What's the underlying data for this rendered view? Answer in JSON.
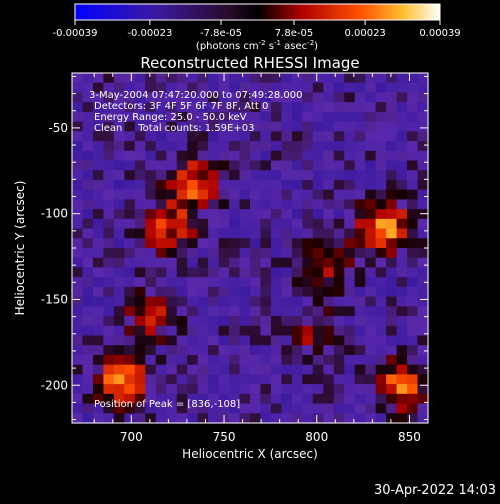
{
  "timestamp": "30-Apr-2022 14:03",
  "colorbar": {
    "tick_labels": [
      "-0.00039",
      "-0.00023",
      "-7.8e-05",
      "7.8e-05",
      "0.00023",
      "0.00039"
    ],
    "tick_values": [
      -0.00039,
      -0.00023,
      -7.8e-05,
      7.8e-05,
      0.00023,
      0.00039
    ],
    "range": [
      -0.00039,
      0.00039
    ],
    "units_main": "(photons cm",
    "units_exp1": "-2",
    "units_mid": " s",
    "units_exp2": "-1",
    "units_end": " asec",
    "units_exp3": "-2",
    "units_close": ")"
  },
  "chart_data": {
    "type": "heatmap",
    "title": "Reconstructed RHESSI Image",
    "xlabel": "Heliocentric X (arcsec)",
    "ylabel": "Heliocentric Y (arcsec)",
    "xlim": [
      668,
      860
    ],
    "ylim": [
      -222,
      -18
    ],
    "x_ticks": [
      700,
      750,
      800,
      850
    ],
    "y_ticks": [
      -50,
      -100,
      -150,
      -200
    ],
    "info_lines": [
      "3-May-2004 07:47:20.000 to 07:49:28.000",
      "Detectors: 3F 4F 5F 6F 7F 8F, Att 0",
      "Energy Range: 25.0 - 50.0 keV",
      "Clean     Total counts: 1.59E+03"
    ],
    "peak_label": "Position of Peak = [836,-108]",
    "peak": [
      836,
      -108
    ],
    "grid": {
      "nx": 34,
      "ny": 36
    },
    "colormap": "blue-purple-red-yellow-white",
    "bright_sources": [
      {
        "x": 836,
        "y": -108,
        "value": 0.00039
      },
      {
        "x": 733,
        "y": -83,
        "value": 0.00033
      },
      {
        "x": 695,
        "y": -197,
        "value": 0.00036
      },
      {
        "x": 845,
        "y": -200,
        "value": 0.00034
      },
      {
        "x": 720,
        "y": -108,
        "value": 0.00027
      },
      {
        "x": 805,
        "y": -130,
        "value": 0.00025
      },
      {
        "x": 800,
        "y": -170,
        "value": 0.00018
      },
      {
        "x": 710,
        "y": -160,
        "value": 0.00022
      }
    ]
  }
}
